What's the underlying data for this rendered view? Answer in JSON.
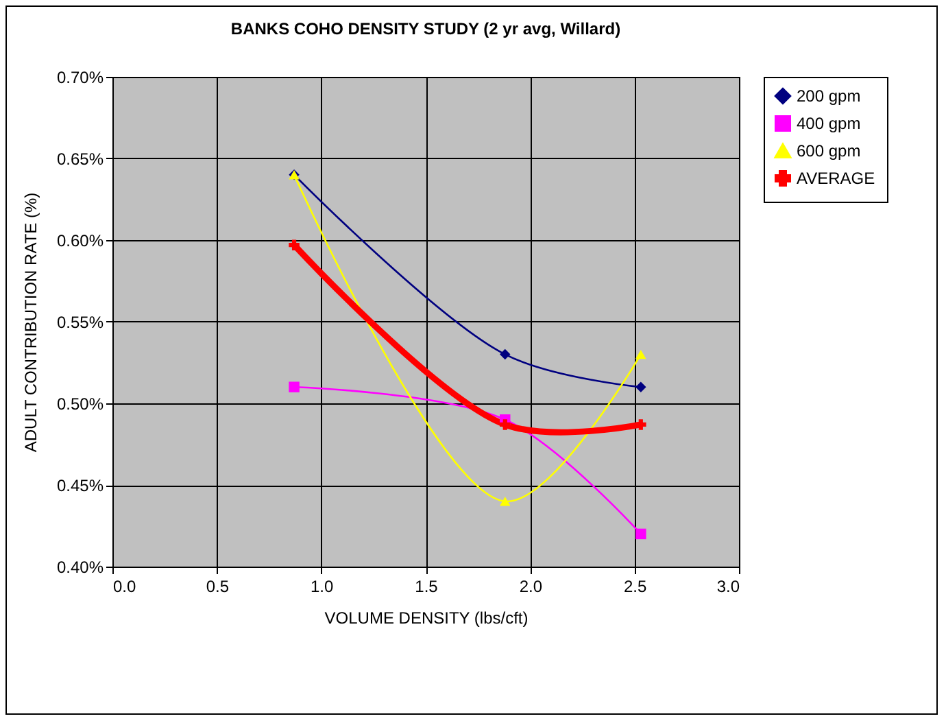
{
  "chart_data": {
    "type": "line",
    "title": "BANKS COHO DENSITY STUDY (2 yr avg, Willard)",
    "xlabel": "VOLUME DENSITY (lbs/cft)",
    "ylabel": "ADULT CONTRIBUTION RATE (%)",
    "x": [
      0.87,
      1.88,
      2.53
    ],
    "series": [
      {
        "name": "200 gpm",
        "color": "#000080",
        "marker": "diamond",
        "values": [
          0.64,
          0.53,
          0.51
        ]
      },
      {
        "name": "400 gpm",
        "color": "#ff00ff",
        "marker": "square",
        "values": [
          0.51,
          0.49,
          0.42
        ]
      },
      {
        "name": "600 gpm",
        "color": "#ffff00",
        "marker": "triangle",
        "values": [
          0.64,
          0.44,
          0.53
        ]
      },
      {
        "name": "AVERAGE",
        "color": "#ff0000",
        "marker": "cross",
        "values": [
          0.597,
          0.487,
          0.487
        ]
      }
    ],
    "xlim": [
      0,
      3
    ],
    "xticks": [
      {
        "value": 0,
        "label": "0.0"
      },
      0.5,
      {
        "value": 1,
        "label": "1.0"
      },
      1.5,
      {
        "value": 2,
        "label": "2.0"
      },
      2.5,
      {
        "value": 3,
        "label": "3.0"
      }
    ],
    "ylim": [
      0.4,
      0.7
    ],
    "yticks": [
      {
        "value": 0.4,
        "label": "0.40%"
      },
      {
        "value": 0.45,
        "label": "0.45%"
      },
      {
        "value": 0.5,
        "label": "0.50%"
      },
      {
        "value": 0.55,
        "label": "0.55%"
      },
      {
        "value": 0.6,
        "label": "0.60%"
      },
      {
        "value": 0.65,
        "label": "0.65%"
      },
      {
        "value": 0.7,
        "label": "0.70%"
      }
    ],
    "grid": true,
    "legend": "right",
    "line_style": "solid"
  }
}
